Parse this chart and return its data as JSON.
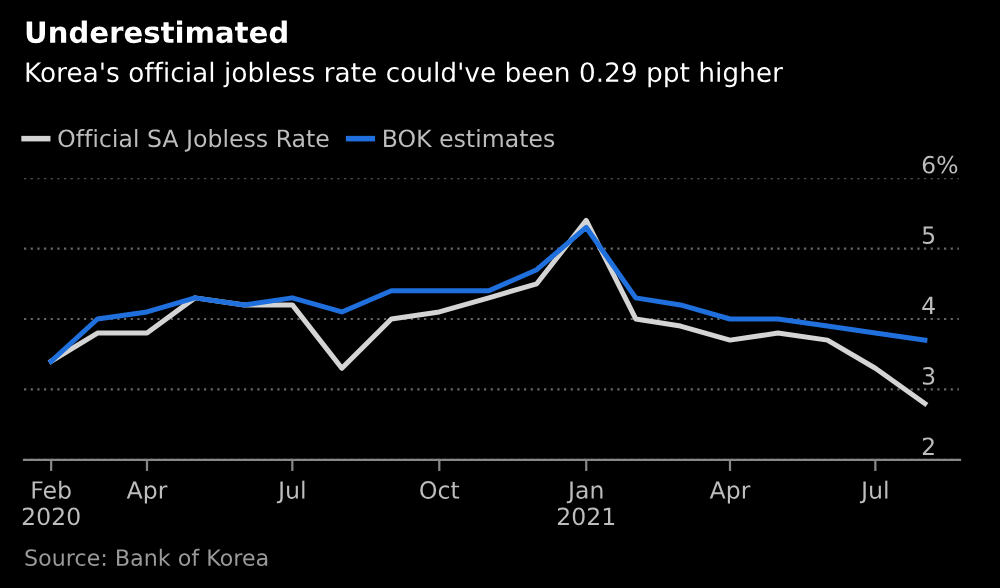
{
  "chart_data": {
    "type": "line",
    "title": "Underestimated",
    "subtitle": "Korea's official jobless rate could've been 0.29 ppt higher",
    "x": [
      "2020-02",
      "2020-03",
      "2020-04",
      "2020-05",
      "2020-06",
      "2020-07",
      "2020-08",
      "2020-09",
      "2020-10",
      "2020-11",
      "2020-12",
      "2021-01",
      "2021-02",
      "2021-03",
      "2021-04",
      "2021-05",
      "2021-06",
      "2021-07",
      "2021-08"
    ],
    "series": [
      {
        "name": "Official SA Jobless Rate",
        "color": "#d4d4d4",
        "values": [
          3.4,
          3.8,
          3.8,
          4.3,
          4.2,
          4.2,
          3.3,
          4.0,
          4.1,
          4.3,
          4.5,
          5.4,
          4.0,
          3.9,
          3.7,
          3.8,
          3.7,
          3.3,
          2.8
        ]
      },
      {
        "name": "BOK estimates",
        "color": "#1f6fdc",
        "values": [
          3.4,
          4.0,
          4.1,
          4.3,
          4.2,
          4.3,
          4.1,
          4.4,
          4.4,
          4.4,
          4.7,
          5.3,
          4.3,
          4.2,
          4.0,
          4.0,
          3.9,
          3.8,
          3.7
        ]
      }
    ],
    "xlim": [
      "2020-01-15",
      "2021-08-23"
    ],
    "xticks": [
      {
        "value": "2020-02",
        "label": "Feb\n2020"
      },
      {
        "value": "2020-04",
        "label": "Apr"
      },
      {
        "value": "2020-07",
        "label": "Jul"
      },
      {
        "value": "2020-10",
        "label": "Oct"
      },
      {
        "value": "2021-01",
        "label": "Jan\n2021"
      },
      {
        "value": "2021-04",
        "label": "Apr"
      },
      {
        "value": "2021-07",
        "label": "Jul"
      }
    ],
    "ylim": [
      2,
      6
    ],
    "yticks": [
      2,
      3,
      4,
      5,
      {
        "value": 6,
        "label": "6%"
      }
    ],
    "grid": "y",
    "legend": "top left",
    "marker": "none",
    "line_style": "solid",
    "annotations": [
      "Source: Bank of Korea"
    ]
  }
}
